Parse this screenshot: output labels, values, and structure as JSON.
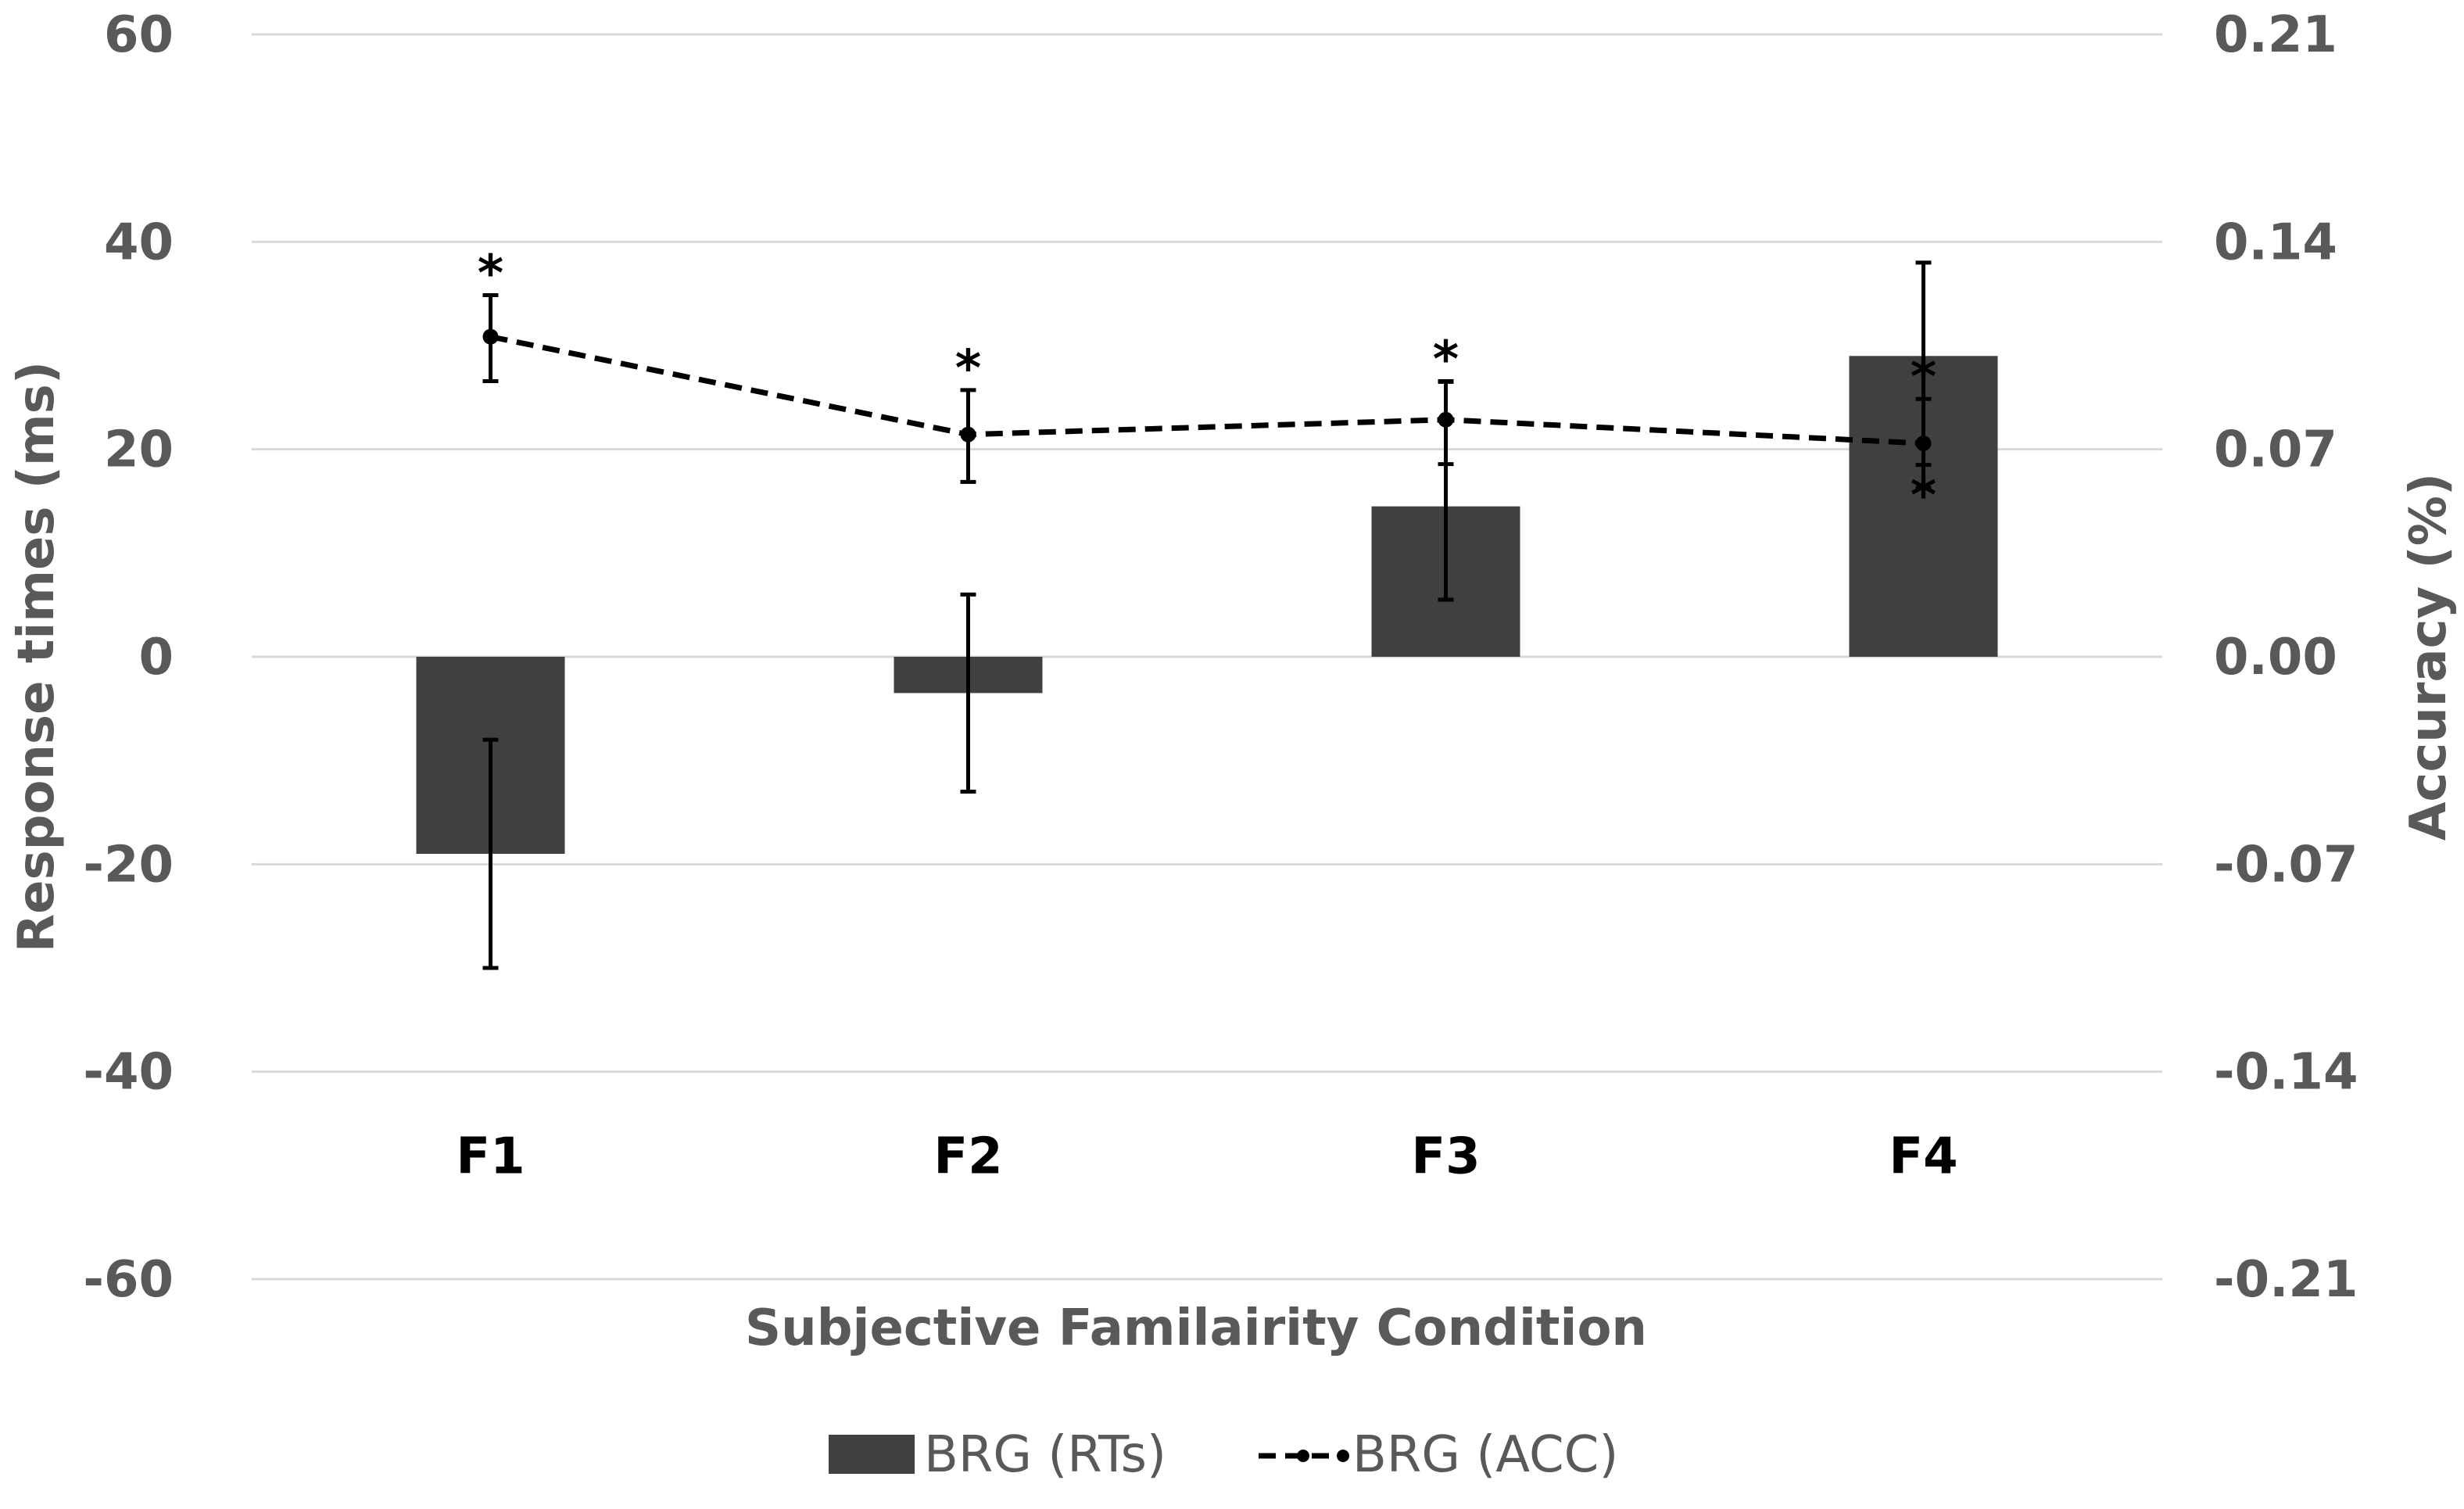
{
  "chart_data": {
    "type": "bar",
    "categories": [
      "F1",
      "F2",
      "F3",
      "F4"
    ],
    "xlabel": "Subjective Familairity Condition",
    "ylabel": "Response times (ms)",
    "y2label": "Accuracy (%)",
    "ylim": [
      -60,
      60
    ],
    "y2lim": [
      -0.21,
      0.21
    ],
    "yticks": [
      "60",
      "40",
      "20",
      "0",
      "-20",
      "-40",
      "-60"
    ],
    "y2ticks": [
      "0.21",
      "0.14",
      "0.07",
      "0.00",
      "-0.07",
      "-0.14",
      "-0.21"
    ],
    "grid": true,
    "legend_position": "bottom",
    "series": [
      {
        "name": "BRG (RTs)",
        "kind": "bar",
        "axis": "left",
        "color": "#404040",
        "values": [
          -19,
          -3.5,
          14.5,
          29
        ],
        "err_low": [
          -30,
          -13,
          5.5,
          18.5
        ],
        "err_high": [
          -8,
          6,
          26.5,
          38
        ],
        "stars": [
          "",
          "",
          "",
          "*"
        ]
      },
      {
        "name": "BRG (ACC)",
        "kind": "line",
        "axis": "right",
        "style": "dashed",
        "color": "#000000",
        "values": [
          0.108,
          0.075,
          0.08,
          0.072
        ],
        "err_low": [
          0.093,
          0.059,
          0.065,
          0.057
        ],
        "err_high": [
          0.122,
          0.09,
          0.093,
          0.087
        ],
        "stars": [
          "*",
          "*",
          "*",
          "*"
        ]
      }
    ]
  }
}
